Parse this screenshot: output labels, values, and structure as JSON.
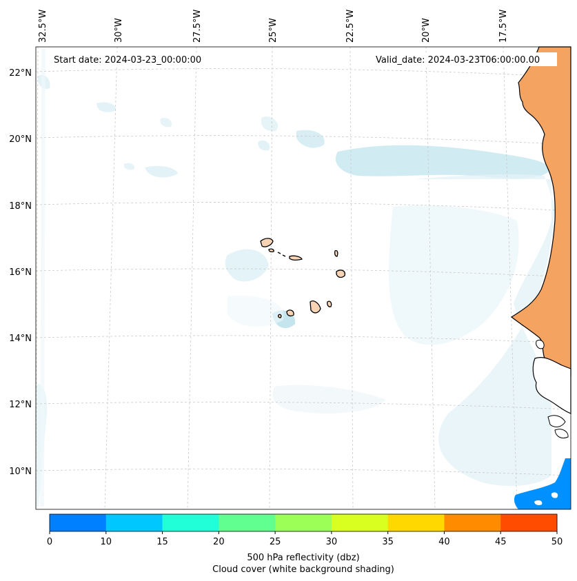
{
  "header": {
    "start_date": "Start date: 2024-03-23_00:00:00",
    "valid_date": "Valid_date: 2024-03-23T06:00:00.00"
  },
  "axes": {
    "lon_labels": [
      "32.5°W",
      "30°W",
      "27.5°W",
      "25°W",
      "22.5°W",
      "20°W",
      "17.5°W"
    ],
    "lat_labels": [
      "22°N",
      "20°N",
      "18°N",
      "16°N",
      "14°N",
      "12°N",
      "10°N"
    ]
  },
  "colorbar": {
    "ticks": [
      "0",
      "10",
      "15",
      "20",
      "25",
      "30",
      "35",
      "40",
      "45",
      "50"
    ],
    "colors": [
      "#0080ff",
      "#00c8ff",
      "#20ffd8",
      "#60ff90",
      "#9cff58",
      "#d8ff20",
      "#ffd800",
      "#ff8c00",
      "#ff4c00"
    ],
    "label_line1": "500 hPa reflectivity (dbz)",
    "label_line2": "Cloud cover (white background shading)"
  },
  "colors": {
    "land_orange": "#f4a460",
    "island_fill": "#f9d4b4",
    "cloud_blue": "#bfe2ec",
    "radar_blue": "#0090ff"
  }
}
